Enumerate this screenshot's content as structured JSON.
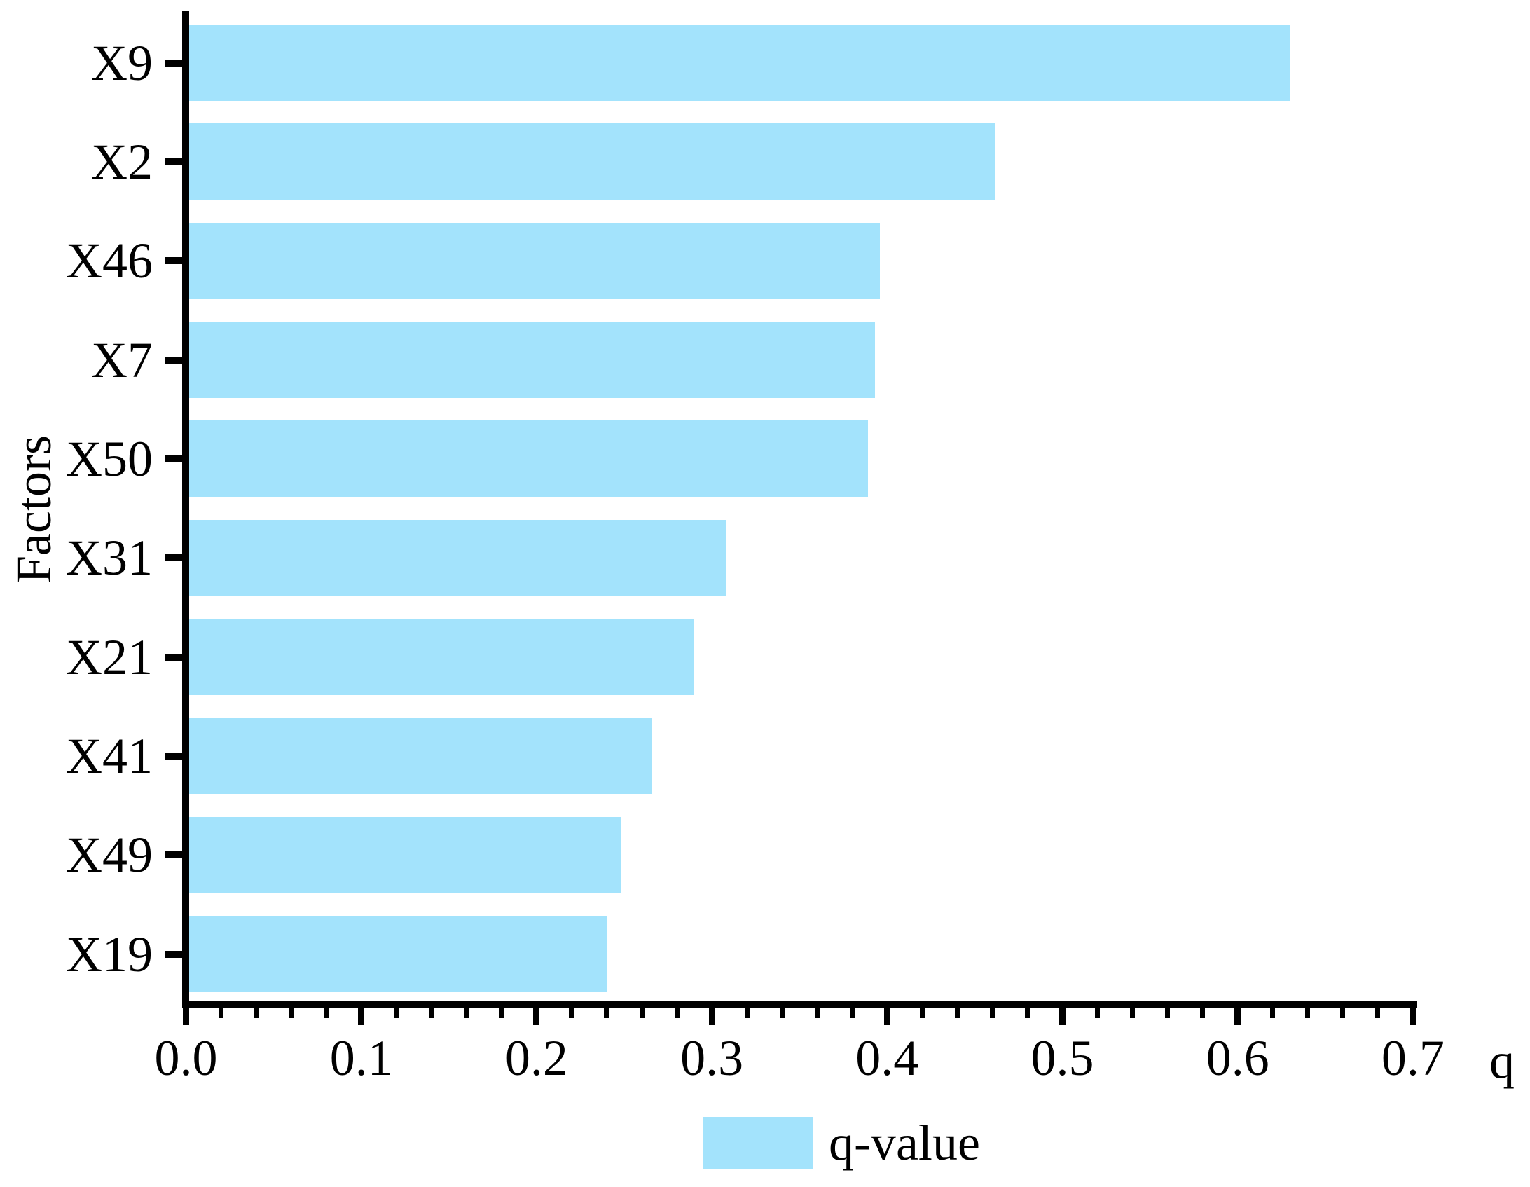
{
  "chart_data": {
    "type": "bar",
    "orientation": "horizontal",
    "title": "",
    "xlabel": "q",
    "ylabel": "Factors",
    "categories": [
      "X9",
      "X2",
      "X46",
      "X7",
      "X50",
      "X31",
      "X21",
      "X41",
      "X49",
      "X19"
    ],
    "series": [
      {
        "name": "q-value",
        "values": [
          0.63,
          0.462,
          0.396,
          0.393,
          0.389,
          0.308,
          0.29,
          0.266,
          0.248,
          0.24
        ]
      }
    ],
    "xlim": [
      0.0,
      0.7
    ],
    "x_tick_labels": [
      "0.0",
      "0.1",
      "0.2",
      "0.3",
      "0.4",
      "0.5",
      "0.6",
      "0.7"
    ],
    "x_tick_values": [
      0.0,
      0.1,
      0.2,
      0.3,
      0.4,
      0.5,
      0.6,
      0.7
    ],
    "x_minor_tick_interval": 0.02,
    "grid": false,
    "bar_color": "#A3E3FC",
    "axis_color": "#000000",
    "legend": {
      "label": "q-value",
      "position": "bottom-center"
    }
  }
}
